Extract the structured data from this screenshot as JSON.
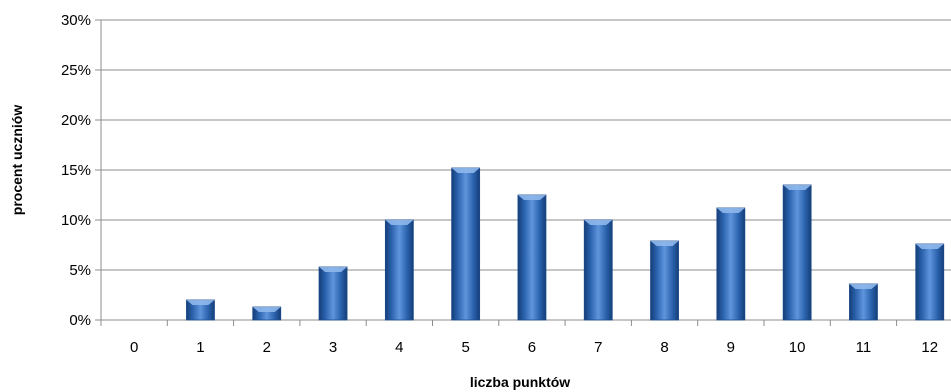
{
  "chart_data": {
    "type": "bar",
    "categories": [
      "0",
      "1",
      "2",
      "3",
      "4",
      "5",
      "6",
      "7",
      "8",
      "9",
      "10",
      "11",
      "12"
    ],
    "values": [
      0,
      2.0,
      1.3,
      5.3,
      10.0,
      15.2,
      12.5,
      10.0,
      7.9,
      11.2,
      13.5,
      3.6,
      7.6
    ],
    "xlabel": "liczba punktów",
    "ylabel": "procent uczniów",
    "ylim": [
      0,
      30
    ],
    "y_ticks": [
      0,
      5,
      10,
      15,
      20,
      25,
      30
    ],
    "y_tick_suffix": "%",
    "grid": true,
    "legend": "none",
    "bar_color": "#2f6ab8"
  }
}
